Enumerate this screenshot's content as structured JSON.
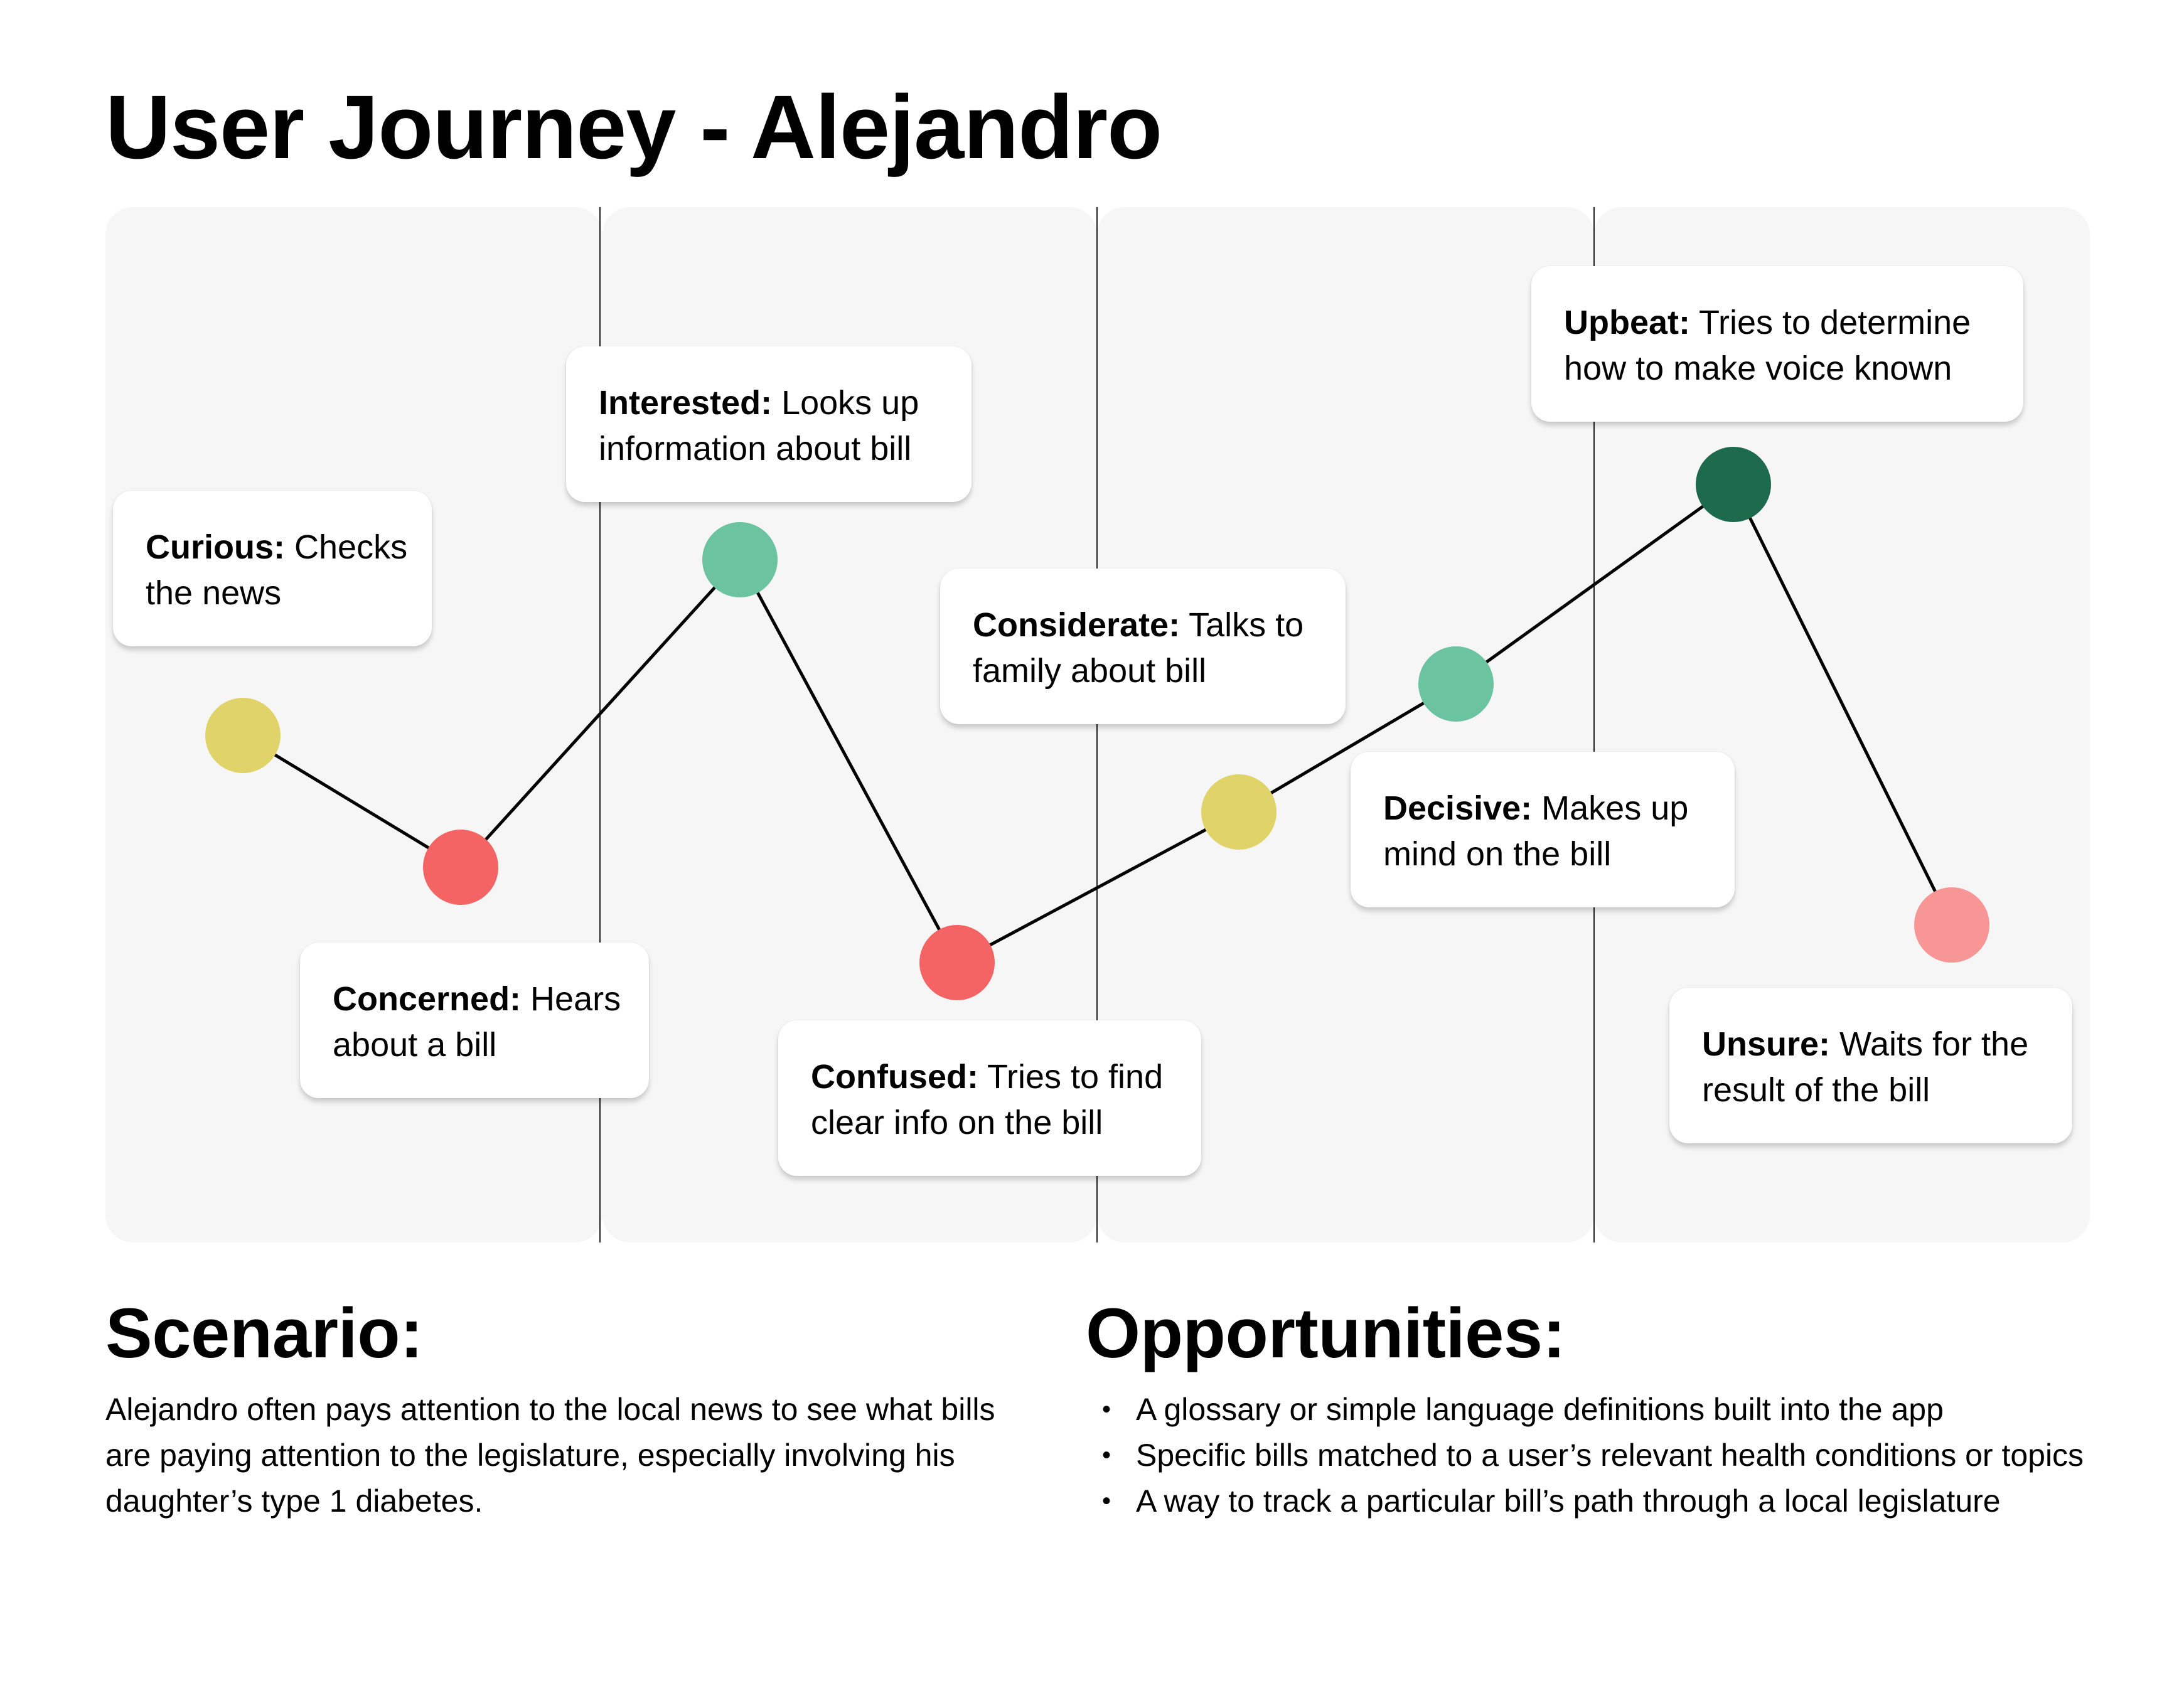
{
  "title": "User Journey - Alejandro",
  "journey": {
    "stages": [
      {
        "mood": "Curious:",
        "text": "Checks the news",
        "line1": " Checks",
        "line2": "the news",
        "color": "#e0d36a"
      },
      {
        "mood": "Concerned:",
        "text": "Hears about a bill",
        "line1": " Hears",
        "line2": "about a bill",
        "color": "#f56464"
      },
      {
        "mood": "Interested:",
        "text": "Looks up information about bill",
        "line1": " Looks up",
        "line2": "information about bill",
        "color": "#6cc3a0"
      },
      {
        "mood": "Confused:",
        "text": "Tries to find clear info on the bill",
        "line1": " Tries to find",
        "line2": "clear info on the bill",
        "color": "#f56464"
      },
      {
        "mood": "Considerate:",
        "text": "Talks to family about bill",
        "line1": " Talks to",
        "line2": "family about bill",
        "color": "#e0d36a"
      },
      {
        "mood": "Decisive:",
        "text": "Makes up mind on the bill",
        "line1": " Makes up",
        "line2": "mind on the bill",
        "color": "#6cc3a0"
      },
      {
        "mood": "Upbeat:",
        "text": "Tries to determine how to make voice known",
        "line1": " Tries to determine",
        "line2": "how to make voice known",
        "color": "#1e6a4c"
      },
      {
        "mood": "Unsure:",
        "text": "Waits for the result of the bill",
        "line1": " Waits for the",
        "line2": "result of the bill",
        "color": "#f89696"
      }
    ]
  },
  "scenario": {
    "heading": "Scenario:",
    "text": "Alejandro often pays attention to the local news to see what bills are paying attention to the legislature, especially involving his daughter’s type 1 diabetes."
  },
  "opportunities": {
    "heading": "Opportunities:",
    "bullet": "•",
    "items": [
      "A glossary or simple language definitions built into the app",
      "Specific bills matched to a user’s relevant health conditions or topics",
      "A way to track a particular bill’s path through a local legislature"
    ]
  }
}
